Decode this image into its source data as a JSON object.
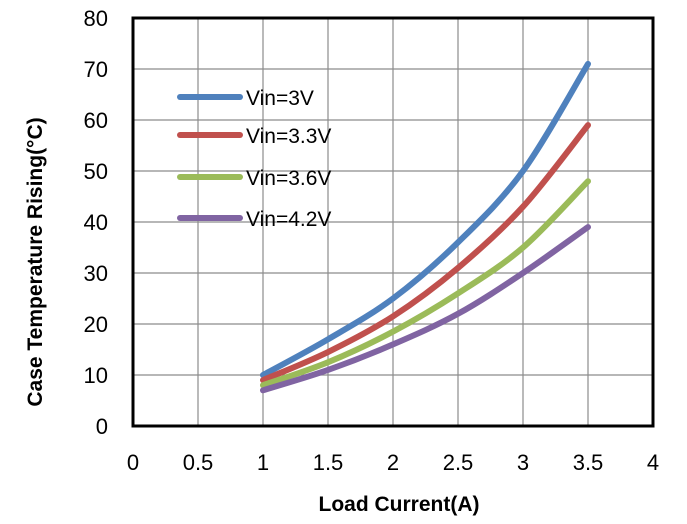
{
  "chart_data": {
    "type": "line",
    "xlabel": "Load Current(A)",
    "ylabel": "Case Temperature Rising(°C)",
    "xlim": [
      0,
      4
    ],
    "ylim": [
      0,
      80
    ],
    "xticks": [
      "0",
      "0.5",
      "1",
      "1.5",
      "2",
      "2.5",
      "3",
      "3.5",
      "4"
    ],
    "yticks": [
      "0",
      "10",
      "20",
      "30",
      "40",
      "50",
      "60",
      "70",
      "80"
    ],
    "grid": true,
    "legend_position": "top-left",
    "series": [
      {
        "name": "Vin=3V",
        "color": "#4f81bd",
        "x": [
          1,
          1.5,
          2,
          2.5,
          3,
          3.5
        ],
        "y": [
          10,
          17,
          25,
          36,
          50,
          71
        ]
      },
      {
        "name": "Vin=3.3V",
        "color": "#c0504d",
        "x": [
          1,
          1.5,
          2,
          2.5,
          3,
          3.5
        ],
        "y": [
          9,
          14.5,
          21.5,
          31,
          43,
          59
        ]
      },
      {
        "name": "Vin=3.6V",
        "color": "#9bbb59",
        "x": [
          1,
          1.5,
          2,
          2.5,
          3,
          3.5
        ],
        "y": [
          8,
          12.5,
          18.5,
          26,
          35,
          48
        ]
      },
      {
        "name": "Vin=4.2V",
        "color": "#8064a2",
        "x": [
          1,
          1.5,
          2,
          2.5,
          3,
          3.5
        ],
        "y": [
          7,
          11,
          16,
          22,
          30,
          39
        ]
      }
    ]
  }
}
